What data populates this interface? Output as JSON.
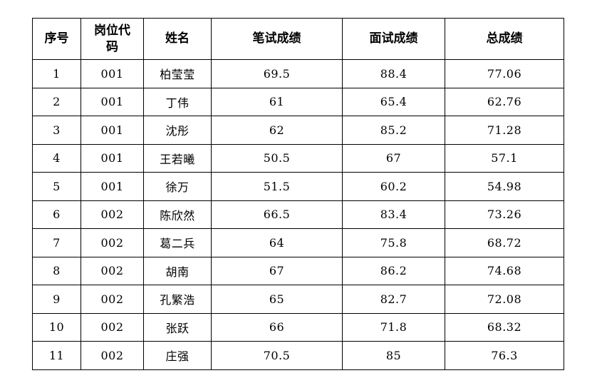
{
  "table": {
    "columns": [
      "序号",
      "岗位代码",
      "姓名",
      "笔试成绩",
      "面试成绩",
      "总成绩"
    ],
    "rows": [
      [
        "1",
        "001",
        "柏莹莹",
        "69.5",
        "88.4",
        "77.06"
      ],
      [
        "2",
        "001",
        "丁伟",
        "61",
        "65.4",
        "62.76"
      ],
      [
        "3",
        "001",
        "沈彤",
        "62",
        "85.2",
        "71.28"
      ],
      [
        "4",
        "001",
        "王若曦",
        "50.5",
        "67",
        "57.1"
      ],
      [
        "5",
        "001",
        "徐万",
        "51.5",
        "60.2",
        "54.98"
      ],
      [
        "6",
        "002",
        "陈欣然",
        "66.5",
        "83.4",
        "73.26"
      ],
      [
        "7",
        "002",
        "葛二兵",
        "64",
        "75.8",
        "68.72"
      ],
      [
        "8",
        "002",
        "胡南",
        "67",
        "86.2",
        "74.68"
      ],
      [
        "9",
        "002",
        "孔繁浩",
        "65",
        "82.7",
        "72.08"
      ],
      [
        "10",
        "002",
        "张跃",
        "66",
        "71.8",
        "68.32"
      ],
      [
        "11",
        "002",
        "庄强",
        "70.5",
        "85",
        "76.3"
      ]
    ],
    "colors": {
      "border": "#000000",
      "text": "#000000",
      "background": "#ffffff"
    }
  }
}
